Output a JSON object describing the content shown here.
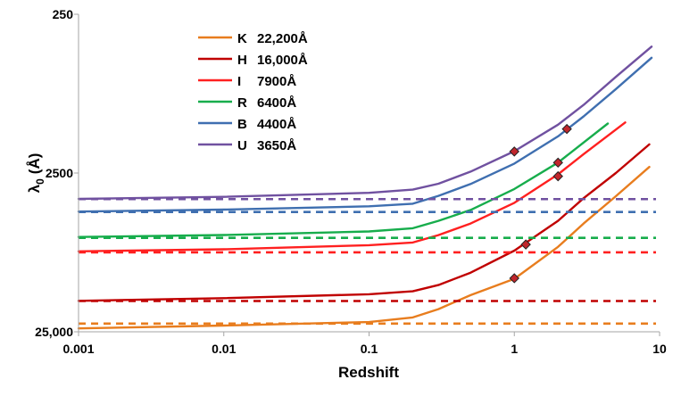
{
  "chart_data": {
    "type": "line",
    "title": "",
    "xlabel": "Redshift",
    "ylabel_main": "λ",
    "ylabel_sub": "0",
    "ylabel_unit": "(Å)",
    "xscale": "log",
    "yscale": "log-inverted",
    "xlim": [
      0.001,
      10
    ],
    "ylim": [
      250,
      25000
    ],
    "x_ticks": [
      {
        "value": 0.001,
        "label": "0.001"
      },
      {
        "value": 0.01,
        "label": "0.01"
      },
      {
        "value": 0.1,
        "label": "0.1"
      },
      {
        "value": 1,
        "label": "1"
      },
      {
        "value": 10,
        "label": "10"
      }
    ],
    "y_ticks": [
      {
        "value": 250,
        "label": "250"
      },
      {
        "value": 2500,
        "label": "2500"
      },
      {
        "value": 25000,
        "label": "25,000"
      }
    ],
    "legend_position": "top-left",
    "series": [
      {
        "name": "K",
        "wavelength": "22,200Å",
        "color": "#e87d1e",
        "rest": 22200,
        "curve": [
          [
            0.001,
            23800
          ],
          [
            0.01,
            22850
          ],
          [
            0.1,
            21700
          ],
          [
            0.2,
            20300
          ],
          [
            0.3,
            18000
          ],
          [
            0.5,
            14700
          ],
          [
            1,
            11600
          ],
          [
            2,
            7300
          ],
          [
            3,
            5200
          ],
          [
            5,
            3500
          ],
          [
            8.5,
            2290
          ]
        ],
        "markers": [
          [
            1.0,
            11500
          ]
        ]
      },
      {
        "name": "H",
        "wavelength": "16,000Å",
        "color": "#c00000",
        "rest": 16000,
        "curve": [
          [
            0.001,
            15950
          ],
          [
            0.01,
            15350
          ],
          [
            0.1,
            14500
          ],
          [
            0.2,
            13900
          ],
          [
            0.3,
            12700
          ],
          [
            0.5,
            10600
          ],
          [
            1,
            7700
          ],
          [
            2,
            5000
          ],
          [
            3,
            3600
          ],
          [
            5,
            2500
          ],
          [
            8.5,
            1650
          ]
        ],
        "markers": [
          [
            1.2,
            7050
          ]
        ]
      },
      {
        "name": "I",
        "wavelength": "7900Å",
        "color": "#ff2020",
        "rest": 7900,
        "curve": [
          [
            0.001,
            7780
          ],
          [
            0.01,
            7560
          ],
          [
            0.1,
            7120
          ],
          [
            0.2,
            6850
          ],
          [
            0.3,
            6150
          ],
          [
            0.5,
            5200
          ],
          [
            1,
            3850
          ],
          [
            2,
            2550
          ],
          [
            3,
            1900
          ],
          [
            5.8,
            1200
          ]
        ],
        "markers": [
          [
            2.0,
            2620
          ]
        ]
      },
      {
        "name": "R",
        "wavelength": "6400Å",
        "color": "#17ad4c",
        "rest": 6400,
        "curve": [
          [
            0.001,
            6320
          ],
          [
            0.01,
            6140
          ],
          [
            0.1,
            5830
          ],
          [
            0.2,
            5570
          ],
          [
            0.3,
            5000
          ],
          [
            0.5,
            4270
          ],
          [
            1,
            3150
          ],
          [
            2,
            2150
          ],
          [
            4.4,
            1220
          ]
        ],
        "markers": [
          [
            2.0,
            2150
          ]
        ]
      },
      {
        "name": "B",
        "wavelength": "4400Å",
        "color": "#3f6fb0",
        "rest": 4400,
        "curve": [
          [
            0.001,
            4370
          ],
          [
            0.01,
            4250
          ],
          [
            0.1,
            4050
          ],
          [
            0.2,
            3900
          ],
          [
            0.3,
            3480
          ],
          [
            0.5,
            2930
          ],
          [
            1,
            2180
          ],
          [
            2,
            1470
          ],
          [
            3,
            1100
          ],
          [
            5,
            740
          ],
          [
            8.8,
            470
          ]
        ],
        "markers": [
          [
            2.3,
            1320
          ]
        ]
      },
      {
        "name": "U",
        "wavelength": "3650Å",
        "color": "#7051a0",
        "rest": 3650,
        "curve": [
          [
            0.001,
            3640
          ],
          [
            0.01,
            3530
          ],
          [
            0.1,
            3330
          ],
          [
            0.2,
            3180
          ],
          [
            0.3,
            2920
          ],
          [
            0.5,
            2450
          ],
          [
            1,
            1820
          ],
          [
            2,
            1240
          ],
          [
            3,
            930
          ],
          [
            5,
            620
          ],
          [
            8.8,
            400
          ]
        ],
        "markers": [
          [
            1.0,
            1830
          ]
        ]
      }
    ]
  }
}
